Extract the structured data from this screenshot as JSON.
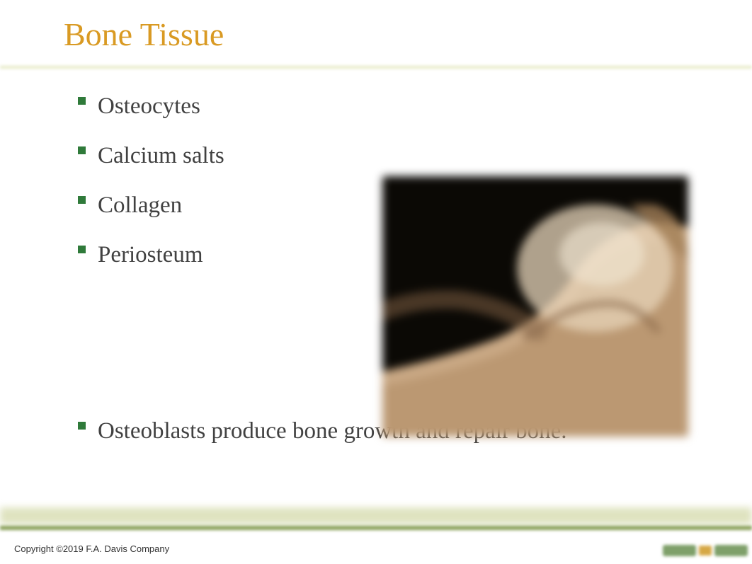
{
  "title": {
    "text": "Bone Tissue",
    "color": "#d99a23",
    "fontsize": 46
  },
  "bullets": {
    "color": "#414141",
    "fontsize": 33,
    "marker_color": "#2f7a3a",
    "items": [
      {
        "text": "Osteocytes"
      },
      {
        "text": "Calcium salts"
      },
      {
        "text": "Collagen"
      },
      {
        "text": "Periosteum"
      }
    ],
    "lower_items": [
      {
        "text": "Osteoblasts produce bone growth and repair bone."
      }
    ]
  },
  "figure": {
    "type": "image-placeholder",
    "alt": "bone joint cross-section (placeholder)",
    "background": "#0b0905",
    "bone_fill": "#c9a884",
    "bone_highlight": "#e7d4b9",
    "bone_shadow": "#876648"
  },
  "rules": {
    "top_color": "#e6eac6",
    "bottom_band_color": "#dfe3c0",
    "bottom_rule_color": "#8aa05a"
  },
  "footer": {
    "copyright": "Copyright ©2019 F.A. Davis Company",
    "copyright_color": "#333333",
    "nav_btn_color": "#7fa06a",
    "nav_mid_color": "#d6a845"
  }
}
